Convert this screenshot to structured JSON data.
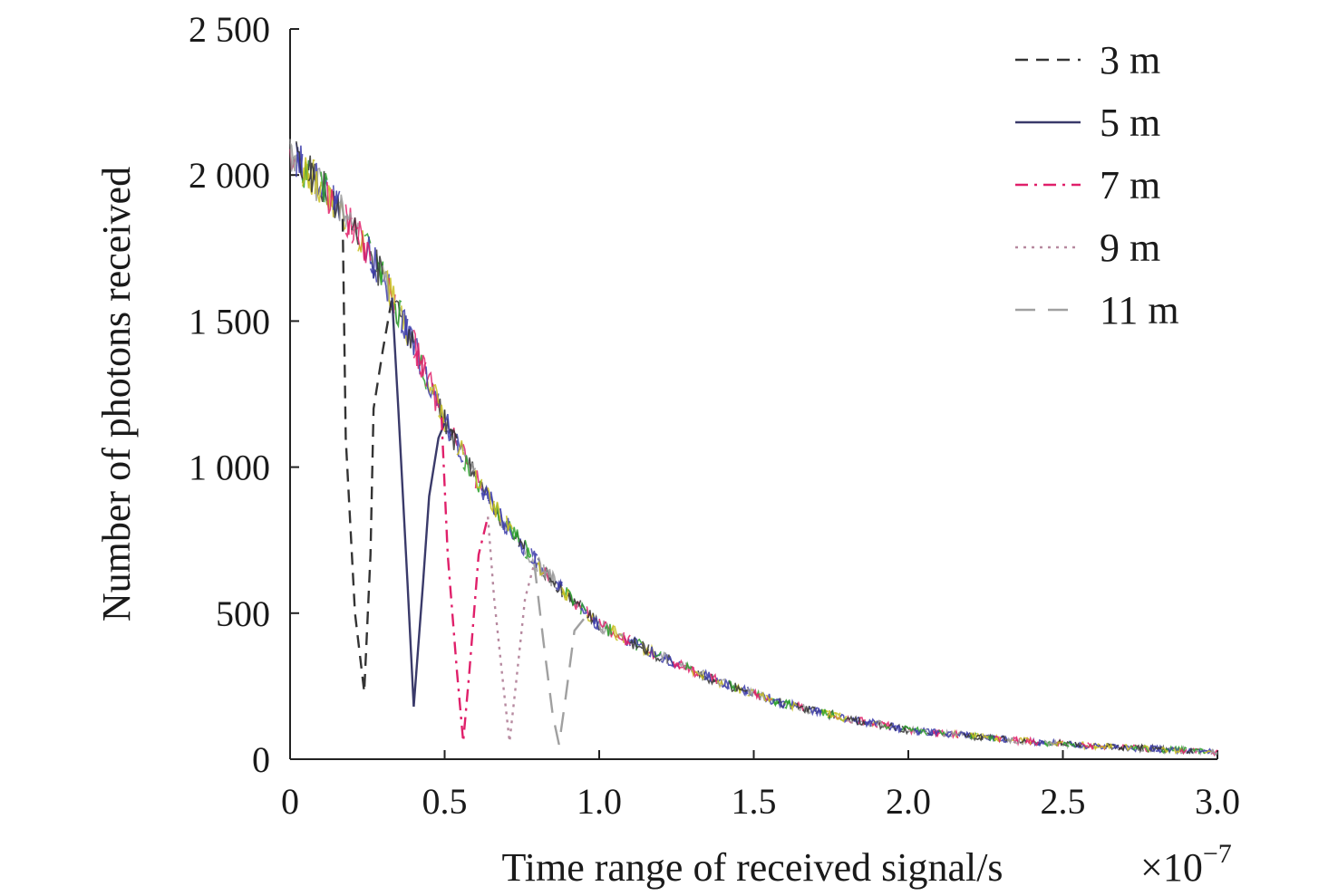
{
  "chart_data": {
    "type": "line",
    "title": "",
    "xlabel": "Time range of received signal/s",
    "x_multiplier_label": "×10",
    "x_multiplier_exponent": "−7",
    "ylabel": "Number of photons received",
    "xlim": [
      0,
      3.0
    ],
    "ylim": [
      0,
      2500
    ],
    "x_ticks": [
      0,
      0.5,
      1.0,
      1.5,
      2.0,
      2.5,
      3.0
    ],
    "x_tick_labels": [
      "0",
      "0.5",
      "1.0",
      "1.5",
      "2.0",
      "2.5",
      "3.0"
    ],
    "y_ticks": [
      0,
      500,
      1000,
      1500,
      2000,
      2500
    ],
    "y_tick_labels": [
      "0",
      "500",
      "1 000",
      "1 500",
      "2 000",
      "2 500"
    ],
    "grid": false,
    "legend_position": "top-right",
    "decay": {
      "description_free_model": true,
      "x": [
        0,
        0.1,
        0.2,
        0.3,
        0.4,
        0.5,
        0.6,
        0.7,
        0.8,
        0.9,
        1.0,
        1.2,
        1.4,
        1.6,
        1.8,
        2.0,
        2.2,
        2.4,
        2.6,
        2.8,
        3.0
      ],
      "y": [
        2080,
        1960,
        1830,
        1650,
        1420,
        1160,
        960,
        800,
        670,
        560,
        460,
        350,
        260,
        190,
        140,
        100,
        80,
        60,
        45,
        35,
        25
      ]
    },
    "series": [
      {
        "name": "3 m",
        "color": "#333333",
        "dash": "14 9",
        "dip": [
          [
            0.17,
            1850
          ],
          [
            0.18,
            1100
          ],
          [
            0.21,
            500
          ],
          [
            0.24,
            230
          ],
          [
            0.26,
            700
          ],
          [
            0.27,
            1200
          ],
          [
            0.3,
            1400
          ],
          [
            0.33,
            1580
          ]
        ]
      },
      {
        "name": "5 m",
        "color": "#3a3a6a",
        "dash": "",
        "dip": [
          [
            0.33,
            1580
          ],
          [
            0.35,
            1200
          ],
          [
            0.38,
            600
          ],
          [
            0.4,
            180
          ],
          [
            0.43,
            600
          ],
          [
            0.45,
            900
          ],
          [
            0.48,
            1100
          ],
          [
            0.5,
            1150
          ]
        ]
      },
      {
        "name": "7 m",
        "color": "#e0206a",
        "dash": "14 7 3 7",
        "dip": [
          [
            0.49,
            1170
          ],
          [
            0.51,
            700
          ],
          [
            0.54,
            300
          ],
          [
            0.56,
            60
          ],
          [
            0.58,
            300
          ],
          [
            0.61,
            700
          ],
          [
            0.64,
            830
          ]
        ]
      },
      {
        "name": "9 m",
        "color": "#b78aa0",
        "dash": "3 6",
        "dip": [
          [
            0.64,
            830
          ],
          [
            0.66,
            550
          ],
          [
            0.69,
            250
          ],
          [
            0.71,
            60
          ],
          [
            0.73,
            250
          ],
          [
            0.76,
            550
          ],
          [
            0.79,
            670
          ]
        ]
      },
      {
        "name": "11 m",
        "color": "#a0a0a0",
        "dash": "22 14",
        "dip": [
          [
            0.79,
            670
          ],
          [
            0.82,
            400
          ],
          [
            0.85,
            150
          ],
          [
            0.87,
            50
          ],
          [
            0.89,
            200
          ],
          [
            0.92,
            440
          ],
          [
            0.95,
            480
          ]
        ]
      }
    ],
    "noise_colors": [
      "#3c3caa",
      "#2aa02a",
      "#e0206a",
      "#c8c020",
      "#333333",
      "#9a9a9a"
    ]
  }
}
